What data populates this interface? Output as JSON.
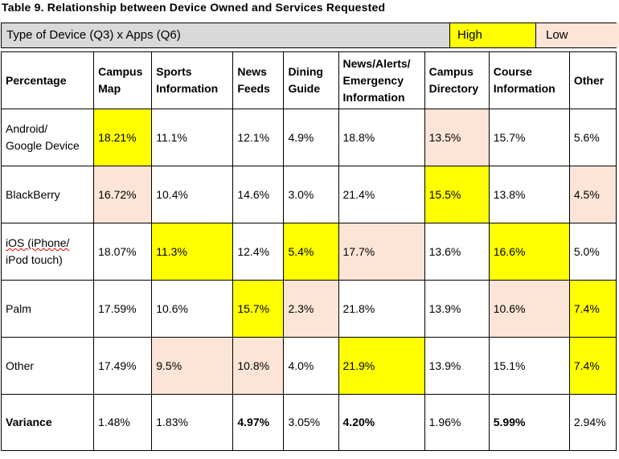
{
  "caption": "Table 9. Relationship between Device Owned and Services Requested",
  "header_bar": {
    "title": "Type of Device (Q3) x Apps (Q6)",
    "high_label": "High",
    "low_label": "Low"
  },
  "columns": {
    "row_header": "Percentage",
    "campus_map": [
      "Campus",
      "Map"
    ],
    "sports_information": [
      "Sports",
      "Information"
    ],
    "news_feeds": [
      "News",
      "Feeds"
    ],
    "dining_guide": [
      "Dining",
      "Guide"
    ],
    "news_alerts": [
      "News/Alerts/",
      "Emergency",
      "Information"
    ],
    "campus_directory": [
      "Campus",
      "Directory"
    ],
    "course_information": [
      "Course",
      "Information"
    ],
    "other": [
      "Other"
    ]
  },
  "rows": [
    {
      "label": [
        "Android/",
        "Google Device"
      ],
      "values": [
        "18.21%",
        "11.1%",
        "12.1%",
        "4.9%",
        "18.8%",
        "13.5%",
        "15.7%",
        "5.6%"
      ],
      "highlight": [
        "high",
        "",
        "",
        "",
        "",
        "low",
        "",
        ""
      ]
    },
    {
      "label": [
        "BlackBerry"
      ],
      "values": [
        "16.72%",
        "10.4%",
        "14.6%",
        "3.0%",
        "21.4%",
        "15.5%",
        "13.8%",
        "4.5%"
      ],
      "highlight": [
        "low",
        "",
        "",
        "",
        "",
        "high",
        "",
        "low"
      ]
    },
    {
      "label": [
        "iOS (iPhone/",
        "iPod touch)"
      ],
      "values": [
        "18.07%",
        "11.3%",
        "12.4%",
        "5.4%",
        "17.7%",
        "13.6%",
        "16.6%",
        "5.0%"
      ],
      "highlight": [
        "",
        "high",
        "",
        "high",
        "low",
        "",
        "high",
        ""
      ]
    },
    {
      "label": [
        "Palm"
      ],
      "values": [
        "17.59%",
        "10.6%",
        "15.7%",
        "2.3%",
        "21.8%",
        "13.9%",
        "10.6%",
        "7.4%"
      ],
      "highlight": [
        "",
        "",
        "high",
        "low",
        "",
        "",
        "low",
        "high"
      ]
    },
    {
      "label": [
        "Other"
      ],
      "values": [
        "17.49%",
        "9.5%",
        "10.8%",
        "4.0%",
        "21.9%",
        "13.9%",
        "15.1%",
        "7.4%"
      ],
      "highlight": [
        "",
        "low",
        "low",
        "",
        "high",
        "",
        "",
        "high"
      ]
    }
  ],
  "variance": {
    "label": "Variance",
    "values": [
      "1.48%",
      "1.83%",
      "4.97%",
      "3.05%",
      "4.20%",
      "1.96%",
      "5.99%",
      "2.94%"
    ],
    "bold": [
      false,
      false,
      true,
      false,
      true,
      false,
      true,
      false
    ]
  },
  "colors": {
    "high": "#ffff00",
    "low": "#fce4d6",
    "header_bar": "#d9d9d9"
  }
}
